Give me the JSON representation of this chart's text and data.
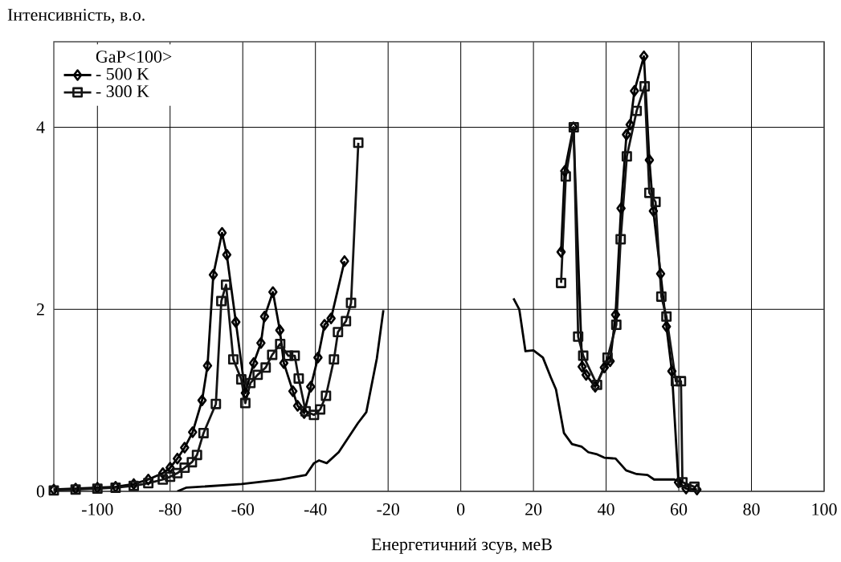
{
  "chart_data": {
    "type": "line",
    "xlabel": "Енергетичний зсув, меВ",
    "ylabel": "Інтенсивність, в.о.",
    "legend_title": "GaP<100>",
    "xlim": [
      -112,
      100
    ],
    "ylim": [
      0,
      4.94
    ],
    "xticks": [
      -100,
      -80,
      -60,
      -40,
      -20,
      0,
      20,
      40,
      60,
      80,
      100
    ],
    "yticks": [
      0,
      2,
      4
    ],
    "grid": true,
    "legend": "top left",
    "series": [
      {
        "name": "- 500 K",
        "color": "#000000",
        "marker": "diamond",
        "x": [
          -112,
          -106,
          -100,
          -95,
          -90,
          -86,
          -82,
          -80,
          -78,
          -76,
          -73.8,
          -71.2,
          -69.7,
          -68.1,
          -65.7,
          -64.4,
          -61.9,
          -59.3,
          -57,
          -55,
          -54,
          -51.7,
          -49.8,
          -48.7,
          -46.2,
          -44.9,
          -43.1,
          -41.3,
          -39.3,
          -37.5,
          -35.7,
          -32,
          null,
          27.6,
          28.6,
          31,
          33.4,
          34.5,
          37,
          39.5,
          41.1,
          42.6,
          44.1,
          45.6,
          46.6,
          47.8,
          50.4,
          51.9,
          53,
          55,
          56.6,
          58.1,
          59.9,
          62,
          65
        ],
        "values": [
          0.02,
          0.03,
          0.04,
          0.05,
          0.08,
          0.13,
          0.2,
          0.26,
          0.36,
          0.48,
          0.65,
          1.0,
          1.38,
          2.38,
          2.84,
          2.6,
          1.86,
          1.08,
          1.41,
          1.63,
          1.92,
          2.19,
          1.77,
          1.41,
          1.1,
          0.94,
          0.86,
          1.15,
          1.47,
          1.83,
          1.9,
          2.53,
          null,
          2.63,
          3.52,
          4.0,
          1.37,
          1.28,
          1.15,
          1.36,
          1.43,
          1.94,
          3.11,
          3.92,
          4.03,
          4.4,
          4.78,
          3.64,
          3.08,
          2.39,
          1.81,
          1.32,
          0.1,
          0.03,
          0.02
        ]
      },
      {
        "name": "- 300 K",
        "color": "#141414",
        "marker": "square",
        "x": [
          -112,
          -106,
          -100,
          -95,
          -90,
          -86,
          -82,
          -80,
          -78,
          -76,
          -74,
          -72.6,
          -70.8,
          -67.4,
          -65.9,
          -64.6,
          -62.6,
          -60.4,
          -59.3,
          -57.9,
          -55.9,
          -53.7,
          -51.9,
          -49.7,
          -47.5,
          -45.7,
          -44.6,
          -42.7,
          -40.4,
          -38.7,
          -37.1,
          -34.9,
          -33.8,
          -31.6,
          -30.2,
          -28.2,
          null,
          27.6,
          28.9,
          31.1,
          32.3,
          33.7,
          37.5,
          40.4,
          42.8,
          44,
          45.7,
          48.4,
          50.6,
          51.9,
          53.6,
          55.2,
          56.6,
          59.2,
          60.6,
          61,
          64.3
        ],
        "values": [
          0.01,
          0.02,
          0.03,
          0.04,
          0.06,
          0.09,
          0.13,
          0.16,
          0.2,
          0.26,
          0.32,
          0.4,
          0.64,
          0.96,
          2.09,
          2.27,
          1.45,
          1.23,
          0.97,
          1.19,
          1.28,
          1.36,
          1.5,
          1.62,
          1.49,
          1.49,
          1.24,
          0.88,
          0.84,
          0.9,
          1.05,
          1.45,
          1.75,
          1.87,
          2.07,
          3.83,
          null,
          2.29,
          3.46,
          4.0,
          1.7,
          1.49,
          1.17,
          1.47,
          1.83,
          2.77,
          3.68,
          4.18,
          4.45,
          3.28,
          3.18,
          2.14,
          1.92,
          1.21,
          1.21,
          0.1,
          0.05
        ]
      },
      {
        "color": "#000000",
        "marker": "none",
        "x": [
          -78,
          -75.6,
          -60.3,
          -49.7,
          -42.6,
          -40.4,
          -39,
          -36.9,
          -33.6,
          -28.3,
          -26,
          -23.1,
          -21.3,
          null,
          14.5,
          16.1,
          17.8,
          20,
          22.6,
          24.8,
          26.2,
          28.4,
          30.6,
          33.3,
          35.1,
          37.3,
          39.5,
          42.6,
          45.5,
          48.4,
          51.4,
          53.2,
          58.8,
          61
        ],
        "values": [
          0,
          0.04,
          0.08,
          0.13,
          0.18,
          0.31,
          0.34,
          0.31,
          0.43,
          0.75,
          0.87,
          1.46,
          1.99,
          null,
          2.12,
          2.0,
          1.54,
          1.55,
          1.47,
          1.25,
          1.12,
          0.64,
          0.52,
          0.49,
          0.43,
          0.41,
          0.37,
          0.36,
          0.23,
          0.19,
          0.18,
          0.13,
          0.13,
          0.09
        ]
      }
    ]
  }
}
